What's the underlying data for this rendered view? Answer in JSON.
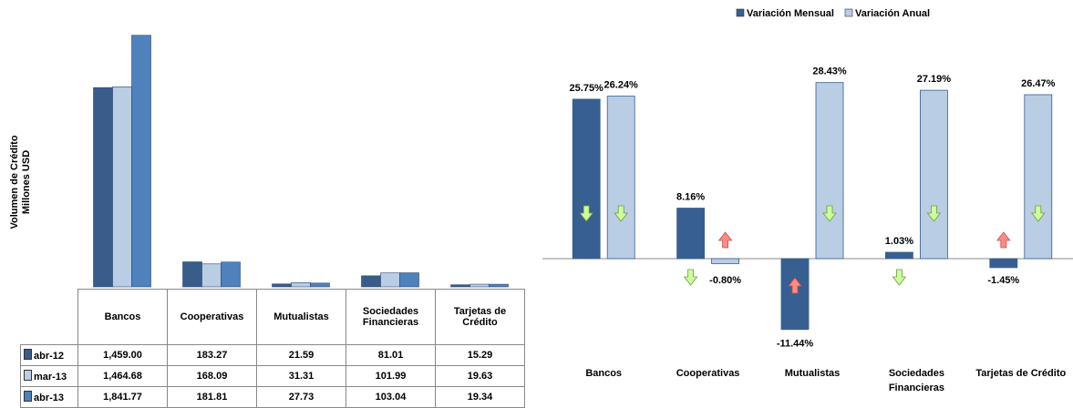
{
  "chart_data": [
    {
      "type": "bar",
      "y_label": [
        "Volumen de Crédito",
        "Millones USD"
      ],
      "categories": [
        "Bancos",
        "Cooperativas",
        "Mutualistas",
        "Sociedades Financieras",
        "Tarjetas de Crédito"
      ],
      "series": [
        {
          "name": "abr-12",
          "color": "#385d8a",
          "values": [
            1459.0,
            183.27,
            21.59,
            81.01,
            15.29
          ],
          "value_labels": [
            "1,459.00",
            "183.27",
            "21.59",
            "81.01",
            "15.29"
          ]
        },
        {
          "name": "mar-13",
          "color": "#b9cde5",
          "values": [
            1464.68,
            168.09,
            31.31,
            101.99,
            19.63
          ],
          "value_labels": [
            "1,464.68",
            "168.09",
            "31.31",
            "101.99",
            "19.63"
          ]
        },
        {
          "name": "abr-13",
          "color": "#4f81bd",
          "values": [
            1841.77,
            181.81,
            27.73,
            103.04,
            19.34
          ],
          "value_labels": [
            "1,841.77",
            "181.81",
            "27.73",
            "103.04",
            "19.34"
          ]
        }
      ],
      "ylim": [
        0,
        1900
      ],
      "data_table": true
    },
    {
      "type": "bar",
      "categories": [
        "Bancos",
        "Cooperativas",
        "Mutualistas",
        "Sociedades Financieras",
        "Tarjetas de Crédito"
      ],
      "series": [
        {
          "name": "Variación Mensual",
          "color": "#375f92",
          "values": [
            25.75,
            8.16,
            -11.44,
            1.03,
            -1.45
          ],
          "value_labels": [
            "25.75%",
            "8.16%",
            "-11.44%",
            "1.03%",
            "-1.45%"
          ]
        },
        {
          "name": "Variación Anual",
          "color": "#b9cde5",
          "values": [
            26.24,
            -0.8,
            28.43,
            27.19,
            26.47
          ],
          "value_labels": [
            "26.24%",
            "-0.80%",
            "28.43%",
            "27.19%",
            "26.47%"
          ]
        }
      ],
      "ylim": [
        -15,
        35
      ],
      "legend": "top",
      "trend_arrows": true
    }
  ]
}
